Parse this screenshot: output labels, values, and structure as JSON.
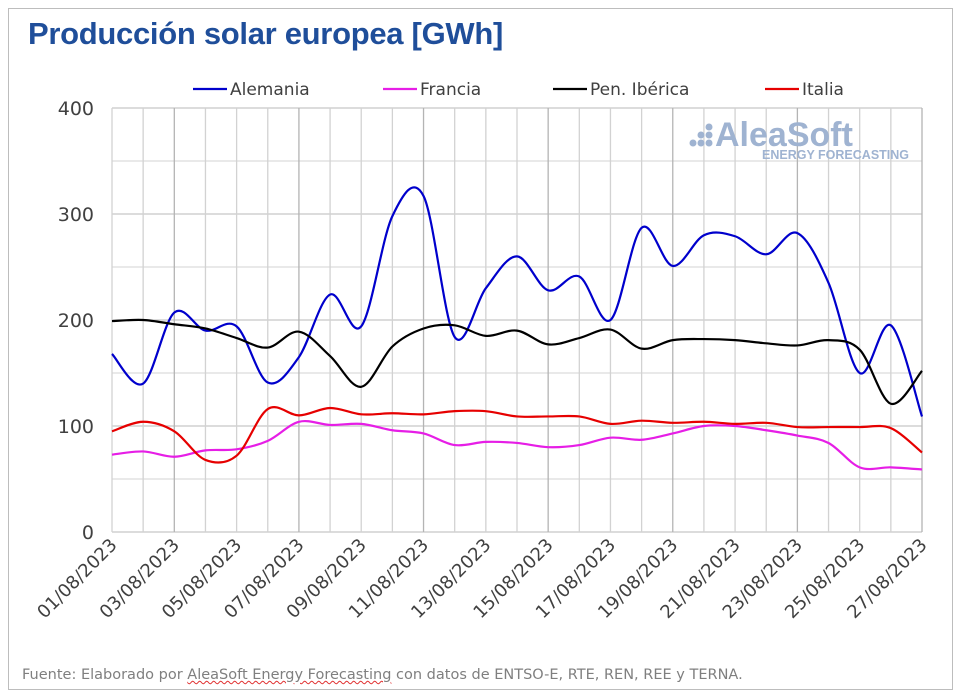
{
  "title": "Producción solar europea [GWh]",
  "footer": {
    "prefix": "Fuente: Elaborado por ",
    "underlined": "AleaSoft Energy Forecasting",
    "suffix": " con datos de ENTSO-E, RTE, REN, REE y TERNA."
  },
  "watermark": {
    "name": "AleaSoft",
    "tagline": "ENERGY FORECASTING",
    "color": "#9fb3d1"
  },
  "chart_data": {
    "type": "line",
    "title": "Producción solar europea [GWh]",
    "xlabel": "",
    "ylabel": "",
    "ylim": [
      0,
      400
    ],
    "yticks": [
      "0",
      "100",
      "200",
      "300",
      "400"
    ],
    "grid": true,
    "legend_position": "top",
    "x": [
      "01/08/2023",
      "02/08/2023",
      "03/08/2023",
      "04/08/2023",
      "05/08/2023",
      "06/08/2023",
      "07/08/2023",
      "08/08/2023",
      "09/08/2023",
      "10/08/2023",
      "11/08/2023",
      "12/08/2023",
      "13/08/2023",
      "14/08/2023",
      "15/08/2023",
      "16/08/2023",
      "17/08/2023",
      "18/08/2023",
      "19/08/2023",
      "20/08/2023",
      "21/08/2023",
      "22/08/2023",
      "23/08/2023",
      "24/08/2023",
      "25/08/2023",
      "26/08/2023",
      "27/08/2023"
    ],
    "xtick_labels": [
      "01/08/2023",
      "03/08/2023",
      "05/08/2023",
      "07/08/2023",
      "09/08/2023",
      "11/08/2023",
      "13/08/2023",
      "15/08/2023",
      "17/08/2023",
      "19/08/2023",
      "21/08/2023",
      "23/08/2023",
      "25/08/2023",
      "27/08/2023"
    ],
    "series": [
      {
        "name": "Alemania",
        "color": "#0000cc",
        "values": [
          168,
          140,
          207,
          190,
          194,
          141,
          165,
          224,
          194,
          298,
          317,
          184,
          230,
          260,
          228,
          241,
          200,
          287,
          251,
          280,
          279,
          262,
          282,
          235,
          150,
          195,
          109
        ]
      },
      {
        "name": "Francia",
        "color": "#e61ee6",
        "values": [
          73,
          76,
          71,
          77,
          78,
          86,
          104,
          101,
          102,
          96,
          93,
          82,
          85,
          84,
          80,
          82,
          89,
          87,
          93,
          100,
          100,
          96,
          91,
          84,
          61,
          61,
          59
        ]
      },
      {
        "name": "Pen. Ibérica",
        "color": "#000000",
        "values": [
          199,
          200,
          196,
          192,
          183,
          174,
          189,
          166,
          137,
          175,
          192,
          195,
          185,
          190,
          177,
          183,
          191,
          173,
          181,
          182,
          181,
          178,
          176,
          181,
          172,
          121,
          152
        ]
      },
      {
        "name": "Italia",
        "color": "#e60000",
        "values": [
          95,
          104,
          95,
          68,
          72,
          116,
          110,
          117,
          111,
          112,
          111,
          114,
          114,
          109,
          109,
          109,
          102,
          105,
          103,
          104,
          102,
          103,
          99,
          99,
          99,
          98,
          75
        ]
      }
    ]
  }
}
